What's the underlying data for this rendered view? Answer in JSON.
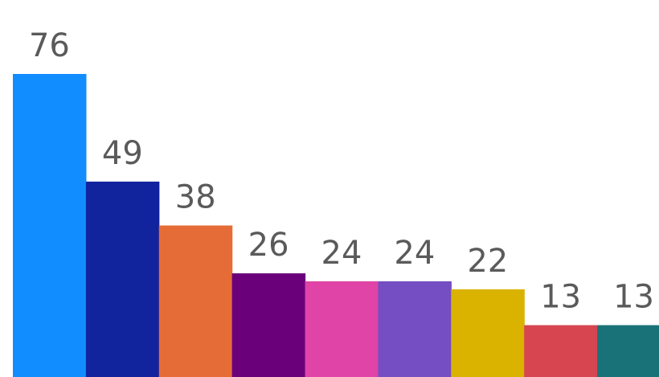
{
  "chart_data": {
    "type": "bar",
    "title": "",
    "xlabel": "",
    "ylabel": "",
    "ylim": [
      0,
      76
    ],
    "grid": false,
    "legend": "none",
    "values": [
      76,
      49,
      38,
      26,
      24,
      24,
      22,
      13,
      13
    ],
    "labels": [
      "76",
      "49",
      "38",
      "26",
      "24",
      "24",
      "22",
      "13",
      "13"
    ],
    "colors": [
      "#118dff",
      "#12239e",
      "#e66c37",
      "#6b007b",
      "#e044a7",
      "#744ec2",
      "#d9b300",
      "#d64550",
      "#197278"
    ]
  }
}
